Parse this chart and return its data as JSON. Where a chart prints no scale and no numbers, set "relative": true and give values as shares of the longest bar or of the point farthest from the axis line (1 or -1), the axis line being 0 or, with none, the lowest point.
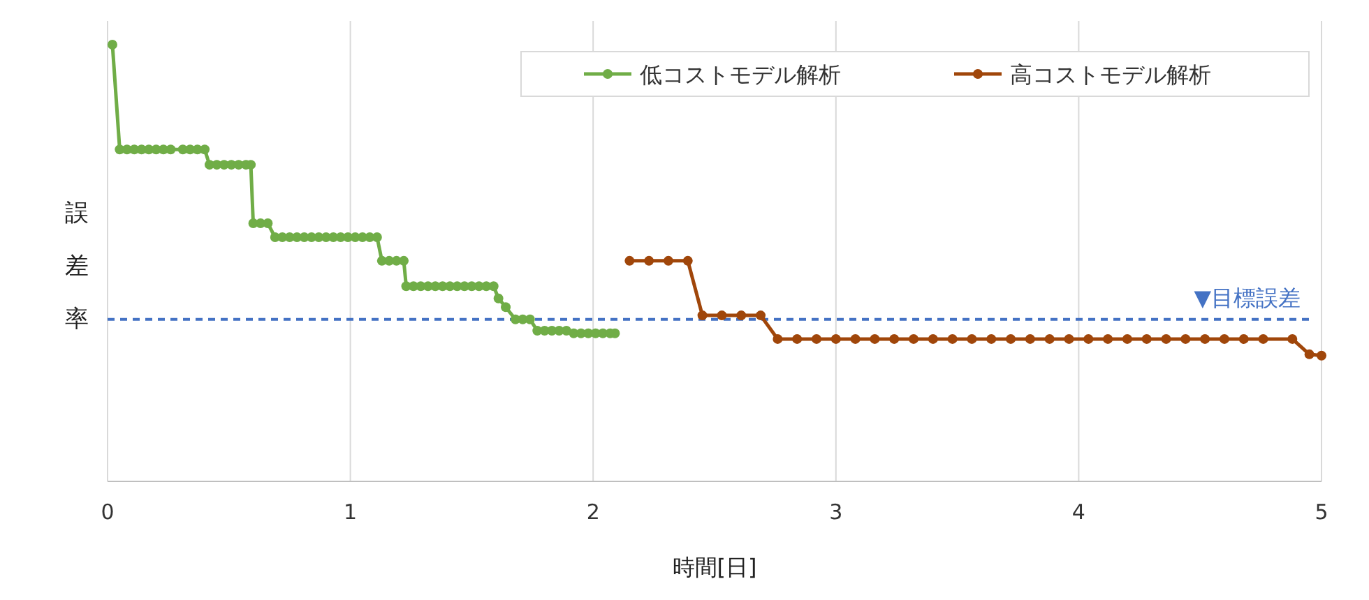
{
  "chart_data": {
    "type": "line",
    "relative": true,
    "xlabel": "時間[日]",
    "ylabel": "誤差率",
    "xlim": [
      0,
      5
    ],
    "xticks": [
      0,
      1,
      2,
      3,
      4,
      5
    ],
    "grid": "x",
    "legend": "top right",
    "marker": "circle",
    "line_style": "solid",
    "ref_lines": [
      {
        "axis": "y",
        "value": 0.371,
        "label": "▼目標誤差",
        "color": "#4472c4",
        "line_style": "dashed"
      }
    ],
    "series": [
      {
        "name": "低コストモデル解析",
        "color": "#70ad47",
        "x": [
          0.02,
          0.05,
          0.08,
          0.11,
          0.14,
          0.17,
          0.2,
          0.23,
          0.26,
          0.31,
          0.34,
          0.37,
          0.4,
          0.42,
          0.45,
          0.48,
          0.51,
          0.54,
          0.57,
          0.59,
          0.6,
          0.63,
          0.66,
          0.69,
          0.72,
          0.75,
          0.78,
          0.81,
          0.84,
          0.87,
          0.9,
          0.93,
          0.96,
          0.99,
          1.02,
          1.05,
          1.08,
          1.11,
          1.13,
          1.16,
          1.19,
          1.22,
          1.23,
          1.26,
          1.29,
          1.32,
          1.35,
          1.38,
          1.41,
          1.44,
          1.47,
          1.5,
          1.53,
          1.56,
          1.59,
          1.61,
          1.64,
          1.68,
          1.71,
          1.74,
          1.77,
          1.8,
          1.83,
          1.86,
          1.89,
          1.92,
          1.95,
          1.98,
          2.01,
          2.04,
          2.07,
          2.09
        ],
        "values": [
          1.0,
          0.76,
          0.76,
          0.76,
          0.76,
          0.76,
          0.76,
          0.76,
          0.76,
          0.76,
          0.76,
          0.76,
          0.76,
          0.725,
          0.725,
          0.725,
          0.725,
          0.725,
          0.725,
          0.725,
          0.591,
          0.591,
          0.591,
          0.559,
          0.559,
          0.559,
          0.559,
          0.559,
          0.559,
          0.559,
          0.559,
          0.559,
          0.559,
          0.559,
          0.559,
          0.559,
          0.559,
          0.559,
          0.505,
          0.505,
          0.505,
          0.505,
          0.447,
          0.447,
          0.447,
          0.447,
          0.447,
          0.447,
          0.447,
          0.447,
          0.447,
          0.447,
          0.447,
          0.447,
          0.447,
          0.419,
          0.399,
          0.371,
          0.371,
          0.371,
          0.345,
          0.345,
          0.345,
          0.345,
          0.345,
          0.339,
          0.339,
          0.339,
          0.339,
          0.339,
          0.339,
          0.339
        ]
      },
      {
        "name": "高コストモデル解析",
        "color": "#a0460a",
        "x": [
          2.15,
          2.23,
          2.31,
          2.39,
          2.45,
          2.53,
          2.61,
          2.69,
          2.76,
          2.84,
          2.92,
          3.0,
          3.08,
          3.16,
          3.24,
          3.32,
          3.4,
          3.48,
          3.56,
          3.64,
          3.72,
          3.8,
          3.88,
          3.96,
          4.04,
          4.12,
          4.2,
          4.28,
          4.36,
          4.44,
          4.52,
          4.6,
          4.68,
          4.76,
          4.88,
          4.95,
          5.0
        ],
        "values": [
          0.505,
          0.505,
          0.505,
          0.505,
          0.38,
          0.38,
          0.38,
          0.38,
          0.326,
          0.326,
          0.326,
          0.326,
          0.326,
          0.326,
          0.326,
          0.326,
          0.326,
          0.326,
          0.326,
          0.326,
          0.326,
          0.326,
          0.326,
          0.326,
          0.326,
          0.326,
          0.326,
          0.326,
          0.326,
          0.326,
          0.326,
          0.326,
          0.326,
          0.326,
          0.326,
          0.291,
          0.288
        ]
      }
    ]
  }
}
